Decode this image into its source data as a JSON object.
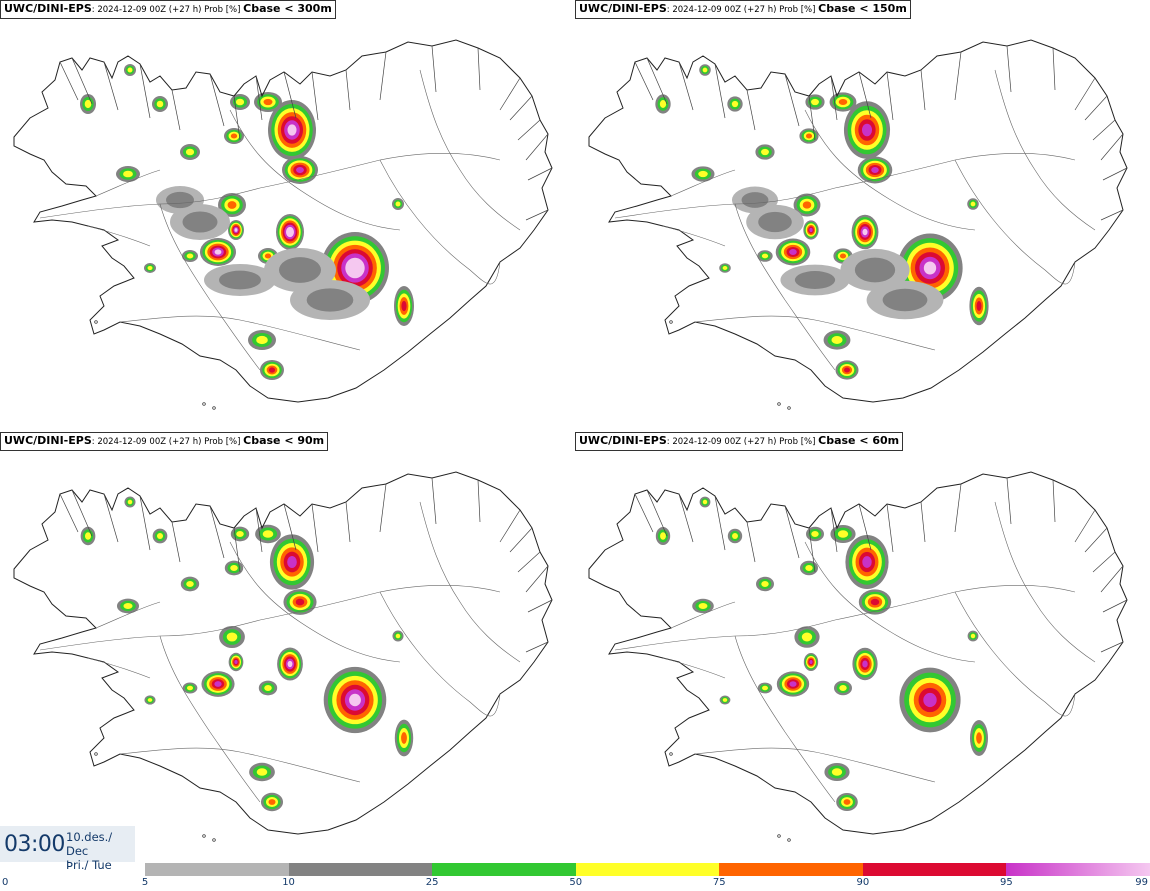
{
  "panels": [
    {
      "model": "UWC/DINI-EPS",
      "meta": ": 2024-12-09 00Z (+27 h) Prob [%] ",
      "param": "Cbase < 300m",
      "level": 1.0
    },
    {
      "model": "UWC/DINI-EPS",
      "meta": ": 2024-12-09 00Z (+27 h) Prob [%] ",
      "param": "Cbase < 150m",
      "level": 0.8
    },
    {
      "model": "UWC/DINI-EPS",
      "meta": ": 2024-12-09 00Z (+27 h) Prob [%] ",
      "param": "Cbase < 90m",
      "level": 0.6
    },
    {
      "model": "UWC/DINI-EPS",
      "meta": ": 2024-12-09 00Z (+27 h) Prob [%] ",
      "param": "Cbase < 60m",
      "level": 0.5
    }
  ],
  "time": {
    "clock": "03:00",
    "date_line1": "10.des./ Dec",
    "date_line2": "Þri./ Tue"
  },
  "colorbar": {
    "ticks": [
      "0",
      "5",
      "10",
      "25",
      "50",
      "75",
      "90",
      "95",
      "99"
    ],
    "bins": [
      {
        "from": 5,
        "to": 10,
        "color": "#b4b4b4"
      },
      {
        "from": 10,
        "to": 25,
        "color": "#828282"
      },
      {
        "from": 25,
        "to": 50,
        "color": "#32c832"
      },
      {
        "from": 50,
        "to": 75,
        "color": "#ffff28"
      },
      {
        "from": 75,
        "to": 90,
        "color": "#ff6400"
      },
      {
        "from": 90,
        "to": 95,
        "color": "#dc0a32"
      },
      {
        "from": 95,
        "to": 99,
        "color": "#c832c8",
        "gradient_to": "#f5c8f0"
      }
    ]
  }
}
